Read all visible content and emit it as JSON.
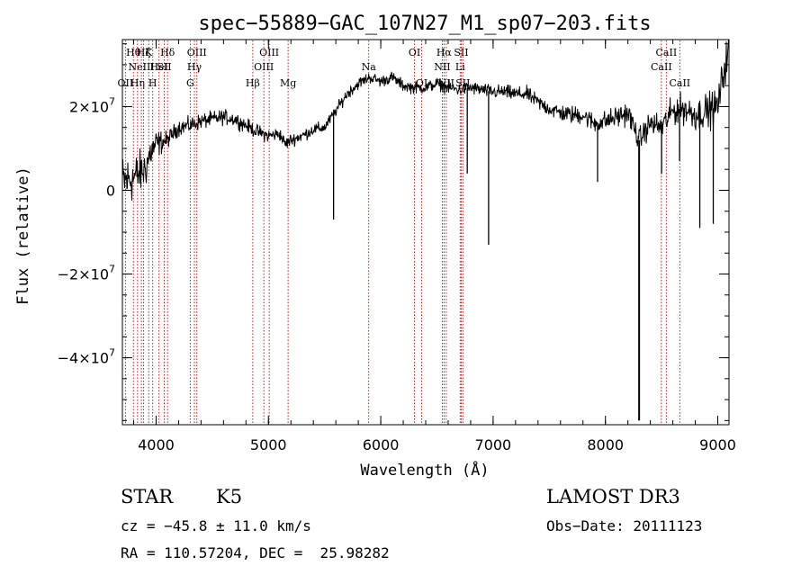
{
  "chart_data": {
    "type": "line",
    "title": "spec−55889−GAC_107N27_M1_sp07−203.fits",
    "xlabel": "Wavelength (Å)",
    "ylabel": "Flux (relative)",
    "xlim": [
      3700,
      9100
    ],
    "ylim": [
      -56000000,
      36000000
    ],
    "x_ticks": [
      {
        "value": 4000,
        "label": "4000"
      },
      {
        "value": 5000,
        "label": "5000"
      },
      {
        "value": 6000,
        "label": "6000"
      },
      {
        "value": 7000,
        "label": "7000"
      },
      {
        "value": 8000,
        "label": "8000"
      },
      {
        "value": 9000,
        "label": "9000"
      }
    ],
    "x_minor_step": 200,
    "y_ticks": [
      {
        "value": 20000000,
        "mant": "2×10",
        "exp": "7"
      },
      {
        "value": 0,
        "mant": "0",
        "exp": ""
      },
      {
        "value": -20000000,
        "mant": "−2×10",
        "exp": "7"
      },
      {
        "value": -40000000,
        "mant": "−4×10",
        "exp": "7"
      }
    ],
    "y_minor_step": 5000000,
    "series_anchors": [
      [
        3700,
        2000000
      ],
      [
        3800,
        3000000
      ],
      [
        3900,
        5000000
      ],
      [
        3950,
        9000000
      ],
      [
        4000,
        11000000
      ],
      [
        4100,
        12000000
      ],
      [
        4200,
        15000000
      ],
      [
        4300,
        15500000
      ],
      [
        4400,
        16500000
      ],
      [
        4500,
        17000000
      ],
      [
        4600,
        17500000
      ],
      [
        4700,
        17000000
      ],
      [
        4800,
        15500000
      ],
      [
        4900,
        14000000
      ],
      [
        5000,
        13000000
      ],
      [
        5100,
        13500000
      ],
      [
        5150,
        11000000
      ],
      [
        5200,
        12000000
      ],
      [
        5300,
        13000000
      ],
      [
        5400,
        14500000
      ],
      [
        5500,
        15000000
      ],
      [
        5600,
        19000000
      ],
      [
        5700,
        23000000
      ],
      [
        5800,
        25500000
      ],
      [
        5900,
        27000000
      ],
      [
        6000,
        26000000
      ],
      [
        6100,
        27000000
      ],
      [
        6200,
        25000000
      ],
      [
        6300,
        24500000
      ],
      [
        6400,
        24500000
      ],
      [
        6500,
        25500000
      ],
      [
        6600,
        24500000
      ],
      [
        6700,
        24000000
      ],
      [
        6800,
        24500000
      ],
      [
        6900,
        24000000
      ],
      [
        7000,
        23500000
      ],
      [
        7100,
        23500000
      ],
      [
        7200,
        23000000
      ],
      [
        7300,
        23000000
      ],
      [
        7400,
        21000000
      ],
      [
        7500,
        19500000
      ],
      [
        7600,
        18500000
      ],
      [
        7700,
        18000000
      ],
      [
        7800,
        18000000
      ],
      [
        7900,
        16000000
      ],
      [
        8000,
        16500000
      ],
      [
        8100,
        17500000
      ],
      [
        8200,
        18500000
      ],
      [
        8300,
        12000000
      ],
      [
        8400,
        16000000
      ],
      [
        8500,
        15000000
      ],
      [
        8600,
        19000000
      ],
      [
        8700,
        19500000
      ],
      [
        8800,
        18000000
      ],
      [
        8900,
        19000000
      ],
      [
        9000,
        20000000
      ],
      [
        9050,
        28000000
      ],
      [
        9100,
        34000000
      ]
    ],
    "noise_profile": [
      [
        3700,
        7000000
      ],
      [
        3900,
        5500000
      ],
      [
        4100,
        2200000
      ],
      [
        5600,
        1500000
      ],
      [
        6500,
        1600000
      ],
      [
        7400,
        2000000
      ],
      [
        8400,
        3200000
      ],
      [
        9100,
        5000000
      ]
    ],
    "absorption_spikes": [
      {
        "x": 5580,
        "y": -7000000
      },
      {
        "x": 6770,
        "y": 4000000
      },
      {
        "x": 6960,
        "y": -13000000
      },
      {
        "x": 7930,
        "y": 2000000
      },
      {
        "x": 8300,
        "y": -55000000
      },
      {
        "x": 8500,
        "y": 4000000
      },
      {
        "x": 8660,
        "y": 7000000
      },
      {
        "x": 8840,
        "y": -9000000
      },
      {
        "x": 8960,
        "y": -8000000
      }
    ],
    "lines": [
      {
        "x": 3727,
        "labels": [
          {
            "text": "OII",
            "row": 3
          }
        ]
      },
      {
        "x": 3798,
        "labels": [
          {
            "text": "Hθ",
            "row": 1
          }
        ]
      },
      {
        "x": 3835,
        "labels": [
          {
            "text": "Hη",
            "row": 3
          }
        ]
      },
      {
        "x": 3869,
        "labels": [
          {
            "text": "NeIII",
            "row": 2
          }
        ]
      },
      {
        "x": 3889,
        "labels": [
          {
            "text": "Hζ",
            "row": 1
          }
        ]
      },
      {
        "x": 3934,
        "labels": [
          {
            "text": "K",
            "row": 1
          }
        ]
      },
      {
        "x": 3970,
        "labels": [
          {
            "text": "H",
            "row": 3
          }
        ]
      },
      {
        "x": 4026,
        "labels": [
          {
            "text": "HeI",
            "row": 2
          }
        ]
      },
      {
        "x": 4072,
        "labels": [
          {
            "text": "SII",
            "row": 2
          }
        ]
      },
      {
        "x": 4102,
        "labels": [
          {
            "text": "Hδ",
            "row": 1
          }
        ]
      },
      {
        "x": 4304,
        "labels": [
          {
            "text": "G",
            "row": 3
          }
        ]
      },
      {
        "x": 4341,
        "labels": [
          {
            "text": "Hγ",
            "row": 2
          }
        ]
      },
      {
        "x": 4363,
        "labels": [
          {
            "text": "OIII",
            "row": 1
          }
        ]
      },
      {
        "x": 4861,
        "labels": [
          {
            "text": "Hβ",
            "row": 3
          }
        ]
      },
      {
        "x": 4959,
        "labels": [
          {
            "text": "OIII",
            "row": 2
          }
        ]
      },
      {
        "x": 5007,
        "labels": [
          {
            "text": "OIII",
            "row": 1
          }
        ]
      },
      {
        "x": 5175,
        "labels": [
          {
            "text": "Mg",
            "row": 3
          }
        ]
      },
      {
        "x": 5893,
        "labels": [
          {
            "text": "Na",
            "row": 2
          }
        ]
      },
      {
        "x": 6300,
        "labels": [
          {
            "text": "OI",
            "row": 1
          }
        ]
      },
      {
        "x": 6364,
        "labels": [
          {
            "text": "OI",
            "row": 3
          }
        ]
      },
      {
        "x": 6548,
        "labels": [
          {
            "text": "NII",
            "row": 2
          }
        ]
      },
      {
        "x": 6563,
        "labels": [
          {
            "text": "Hα",
            "row": 1
          }
        ]
      },
      {
        "x": 6583,
        "labels": [
          {
            "text": "NII",
            "row": 3
          }
        ]
      },
      {
        "x": 6707,
        "labels": [
          {
            "text": "Li",
            "row": 2
          }
        ]
      },
      {
        "x": 6716,
        "labels": [
          {
            "text": "SII",
            "row": 1
          }
        ]
      },
      {
        "x": 6731,
        "labels": [
          {
            "text": "SII",
            "row": 3
          }
        ]
      },
      {
        "x": 8498,
        "labels": [
          {
            "text": "CaII",
            "row": 2
          }
        ]
      },
      {
        "x": 8542,
        "labels": [
          {
            "text": "CaII",
            "row": 1
          }
        ]
      },
      {
        "x": 8662,
        "labels": [
          {
            "text": "CaII",
            "row": 3
          }
        ]
      }
    ],
    "line_color": "#cc0000",
    "grid": false,
    "legend": "none"
  },
  "info": {
    "object_class": "STAR",
    "subclass": "K5",
    "survey": "LAMOST DR3",
    "cz": "cz = −45.8 ± 11.0 km/s",
    "obs_date": "Obs−Date: 20111123",
    "radec": "RA = 110.57204, DEC =  25.98282"
  }
}
